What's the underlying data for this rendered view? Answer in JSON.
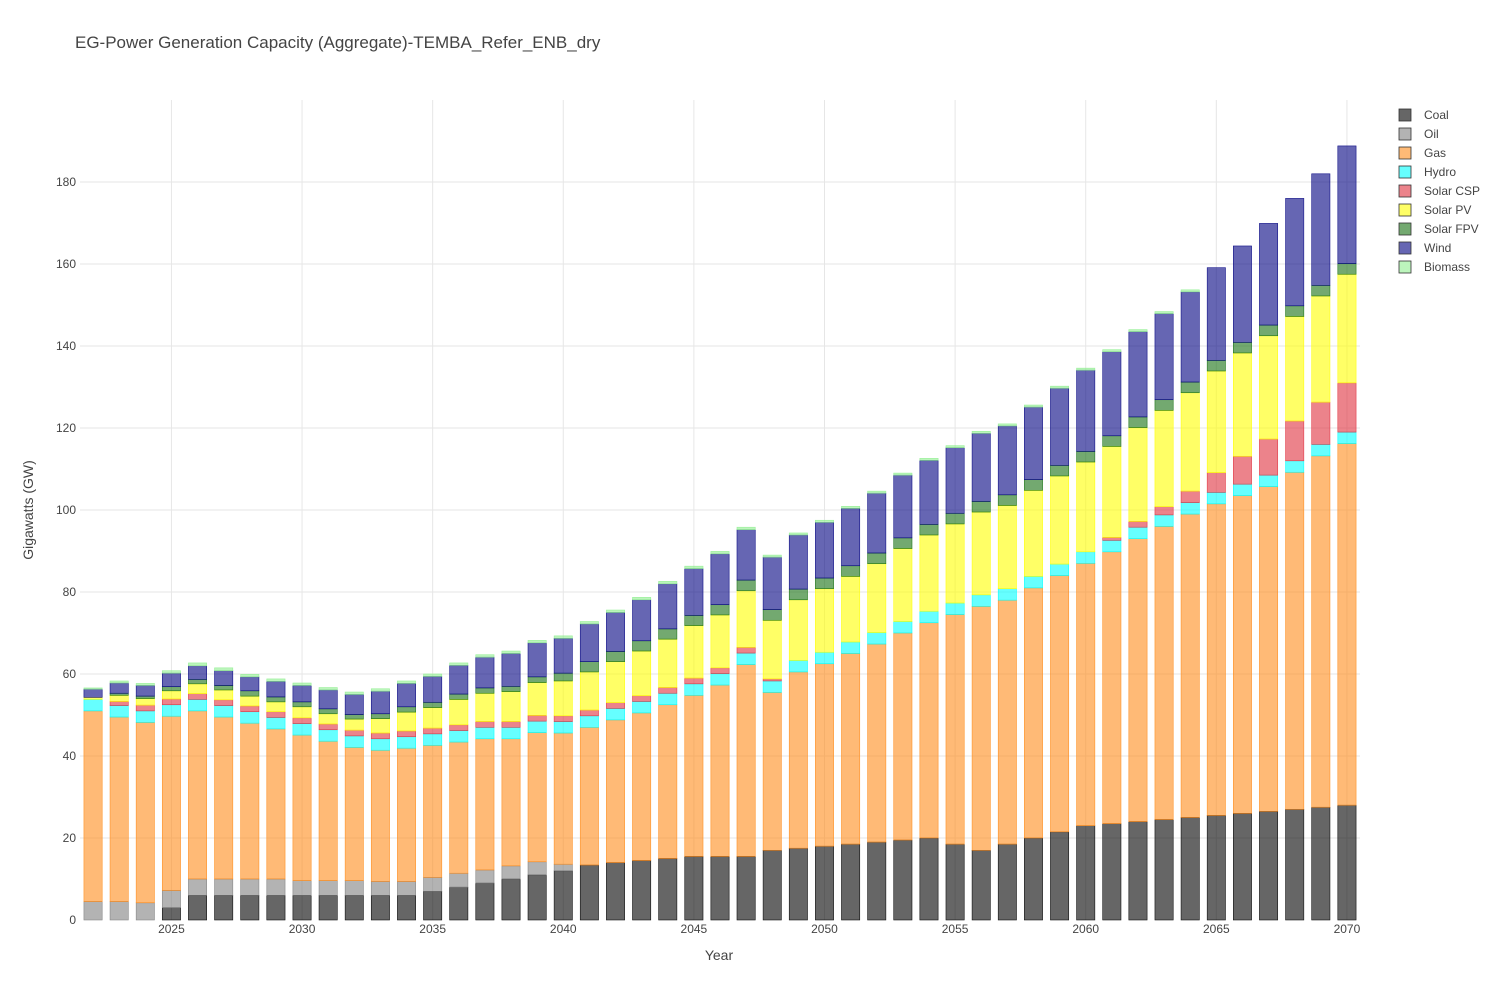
{
  "chart_data": {
    "type": "bar",
    "stacked": true,
    "title": "EG-Power Generation Capacity (Aggregate)-TEMBA_Refer_ENB_dry",
    "xlabel": "Year",
    "ylabel": "Gigawatts (GW)",
    "xlim": [
      2022,
      2070
    ],
    "ylim": [
      0,
      200
    ],
    "grid": true,
    "legend_position": "top-right",
    "x_ticks": [
      2025,
      2030,
      2035,
      2040,
      2045,
      2050,
      2055,
      2060,
      2065,
      2070
    ],
    "y_ticks": [
      0,
      20,
      40,
      60,
      80,
      100,
      120,
      140,
      160,
      180
    ],
    "x": [
      2022,
      2023,
      2024,
      2025,
      2026,
      2027,
      2028,
      2029,
      2030,
      2031,
      2032,
      2033,
      2034,
      2035,
      2036,
      2037,
      2038,
      2039,
      2040,
      2041,
      2042,
      2043,
      2044,
      2045,
      2046,
      2047,
      2048,
      2049,
      2050,
      2051,
      2052,
      2053,
      2054,
      2055,
      2056,
      2057,
      2058,
      2059,
      2060,
      2061,
      2062,
      2063,
      2064,
      2065,
      2066,
      2067,
      2068,
      2069,
      2070
    ],
    "series": [
      {
        "name": "Coal",
        "color": "#000000",
        "values": [
          0,
          0,
          0,
          3,
          6,
          6,
          6,
          6,
          6,
          6,
          6,
          6,
          6,
          7,
          8,
          9,
          10,
          11,
          12,
          13.4,
          14,
          14.5,
          15,
          15.5,
          15.5,
          15.5,
          17,
          17.5,
          18,
          18.5,
          19,
          19.5,
          20,
          18.5,
          17,
          18.5,
          20,
          21.5,
          23,
          23.5,
          24,
          24.5,
          25,
          25.5,
          26,
          26.5,
          27,
          27.5,
          28
        ]
      },
      {
        "name": "Oil",
        "color": "#808080",
        "values": [
          4.5,
          4.5,
          4.2,
          4.2,
          4,
          4,
          4,
          4,
          3.6,
          3.6,
          3.6,
          3.4,
          3.4,
          3.4,
          3.4,
          3.2,
          3.2,
          3.2,
          1.6,
          0,
          0,
          0,
          0,
          0,
          0,
          0,
          0,
          0,
          0,
          0,
          0,
          0,
          0,
          0,
          0,
          0,
          0,
          0,
          0,
          0,
          0,
          0,
          0,
          0,
          0,
          0,
          0,
          0,
          0
        ]
      },
      {
        "name": "Gas",
        "color": "#ff8c1a",
        "values": [
          46.5,
          45,
          44,
          42.5,
          41,
          39.5,
          38,
          36.6,
          35.5,
          34,
          32.5,
          32,
          32.5,
          32.2,
          32,
          32,
          31,
          31.5,
          32,
          33.6,
          34.8,
          36,
          37.5,
          39.3,
          41.8,
          46.8,
          38.5,
          43,
          44.5,
          46.5,
          48.3,
          50.5,
          52.5,
          56,
          59.5,
          59.5,
          61,
          62.5,
          64,
          66.3,
          69,
          71.5,
          74,
          76,
          77.5,
          79.2,
          82.2,
          85.7,
          88.2
        ]
      },
      {
        "name": "Hydro",
        "color": "#00ffff",
        "values": [
          2.8,
          2.8,
          2.8,
          2.8,
          2.8,
          2.8,
          2.8,
          2.8,
          2.8,
          2.8,
          2.8,
          2.8,
          2.8,
          2.8,
          2.8,
          2.8,
          2.8,
          2.8,
          2.8,
          2.8,
          2.8,
          2.8,
          2.8,
          2.8,
          2.8,
          2.8,
          2.8,
          2.8,
          2.8,
          2.8,
          2.8,
          2.8,
          2.8,
          2.8,
          2.8,
          2.8,
          2.8,
          2.8,
          2.8,
          2.8,
          2.8,
          2.8,
          2.8,
          2.8,
          2.8,
          2.8,
          2.8,
          2.8,
          2.8
        ]
      },
      {
        "name": "Solar CSP",
        "color": "#e0303e",
        "values": [
          0,
          1,
          1.4,
          1.4,
          1.4,
          1.4,
          1.4,
          1.4,
          1.4,
          1.4,
          1.4,
          1.4,
          1.4,
          1.4,
          1.4,
          1.4,
          1.4,
          1.4,
          1.4,
          1.4,
          1.4,
          1.4,
          1.4,
          1.4,
          1.4,
          1.4,
          0.5,
          0,
          0,
          0,
          0,
          0,
          0,
          0,
          0,
          0,
          0,
          0,
          0,
          0.7,
          1.4,
          2,
          2.8,
          4.8,
          6.8,
          8.8,
          9.7,
          10.3,
          12
        ]
      },
      {
        "name": "Solar PV",
        "color": "#ffff00",
        "values": [
          0.5,
          1.5,
          1.6,
          2,
          2.4,
          2.4,
          2.4,
          2.4,
          2.7,
          2.5,
          2.7,
          3.5,
          4.6,
          5,
          6.2,
          6.9,
          7.3,
          8,
          8.5,
          9.3,
          10,
          10.9,
          11.8,
          12.8,
          12.9,
          13.8,
          14.3,
          14.8,
          15.5,
          16,
          16.8,
          17.8,
          18.6,
          19.3,
          20.2,
          20.3,
          21,
          21.5,
          21.9,
          22.2,
          22.9,
          23.5,
          24,
          24.8,
          25.2,
          25.2,
          25.5,
          25.9,
          26.5
        ]
      },
      {
        "name": "Solar FPV",
        "color": "#157010",
        "values": [
          0,
          0.5,
          0.6,
          1,
          1.1,
          1.1,
          1.3,
          1.2,
          1.2,
          1.2,
          1.1,
          1.2,
          1.3,
          1.3,
          1.3,
          1.3,
          1.3,
          1.4,
          1.9,
          2.5,
          2.5,
          2.5,
          2.5,
          2.5,
          2.5,
          2.6,
          2.6,
          2.6,
          2.6,
          2.6,
          2.6,
          2.6,
          2.6,
          2.6,
          2.6,
          2.6,
          2.6,
          2.6,
          2.6,
          2.6,
          2.6,
          2.6,
          2.6,
          2.6,
          2.6,
          2.6,
          2.6,
          2.6,
          2.6
        ]
      },
      {
        "name": "Wind",
        "color": "#000080",
        "values": [
          2,
          2.5,
          2.6,
          3.3,
          3.3,
          3.6,
          3.4,
          3.8,
          4,
          4.6,
          4.9,
          5.5,
          5.7,
          6.3,
          7,
          7.5,
          8,
          8.3,
          8.5,
          9.2,
          9.5,
          10,
          11,
          11.4,
          12.4,
          12.3,
          12.8,
          13.2,
          13.6,
          14,
          14.6,
          15.3,
          15.6,
          16,
          16.6,
          16.8,
          17.7,
          18.8,
          19.8,
          20.5,
          20.8,
          21,
          22,
          22.6,
          23.5,
          24.8,
          26.2,
          27.2,
          28.7
        ]
      },
      {
        "name": "Biomass",
        "color": "#90ee90",
        "values": [
          0.3,
          0.5,
          0.5,
          0.6,
          0.7,
          0.7,
          0.6,
          0.6,
          0.6,
          0.6,
          0.6,
          0.6,
          0.6,
          0.6,
          0.6,
          0.6,
          0.6,
          0.6,
          0.6,
          0.6,
          0.6,
          0.6,
          0.6,
          0.6,
          0.6,
          0.6,
          0.5,
          0.5,
          0.5,
          0.5,
          0.5,
          0.5,
          0.5,
          0.5,
          0.5,
          0.5,
          0.5,
          0.5,
          0.5,
          0.5,
          0.5,
          0.5,
          0.5,
          0,
          0,
          0,
          0,
          0,
          0
        ]
      }
    ]
  }
}
